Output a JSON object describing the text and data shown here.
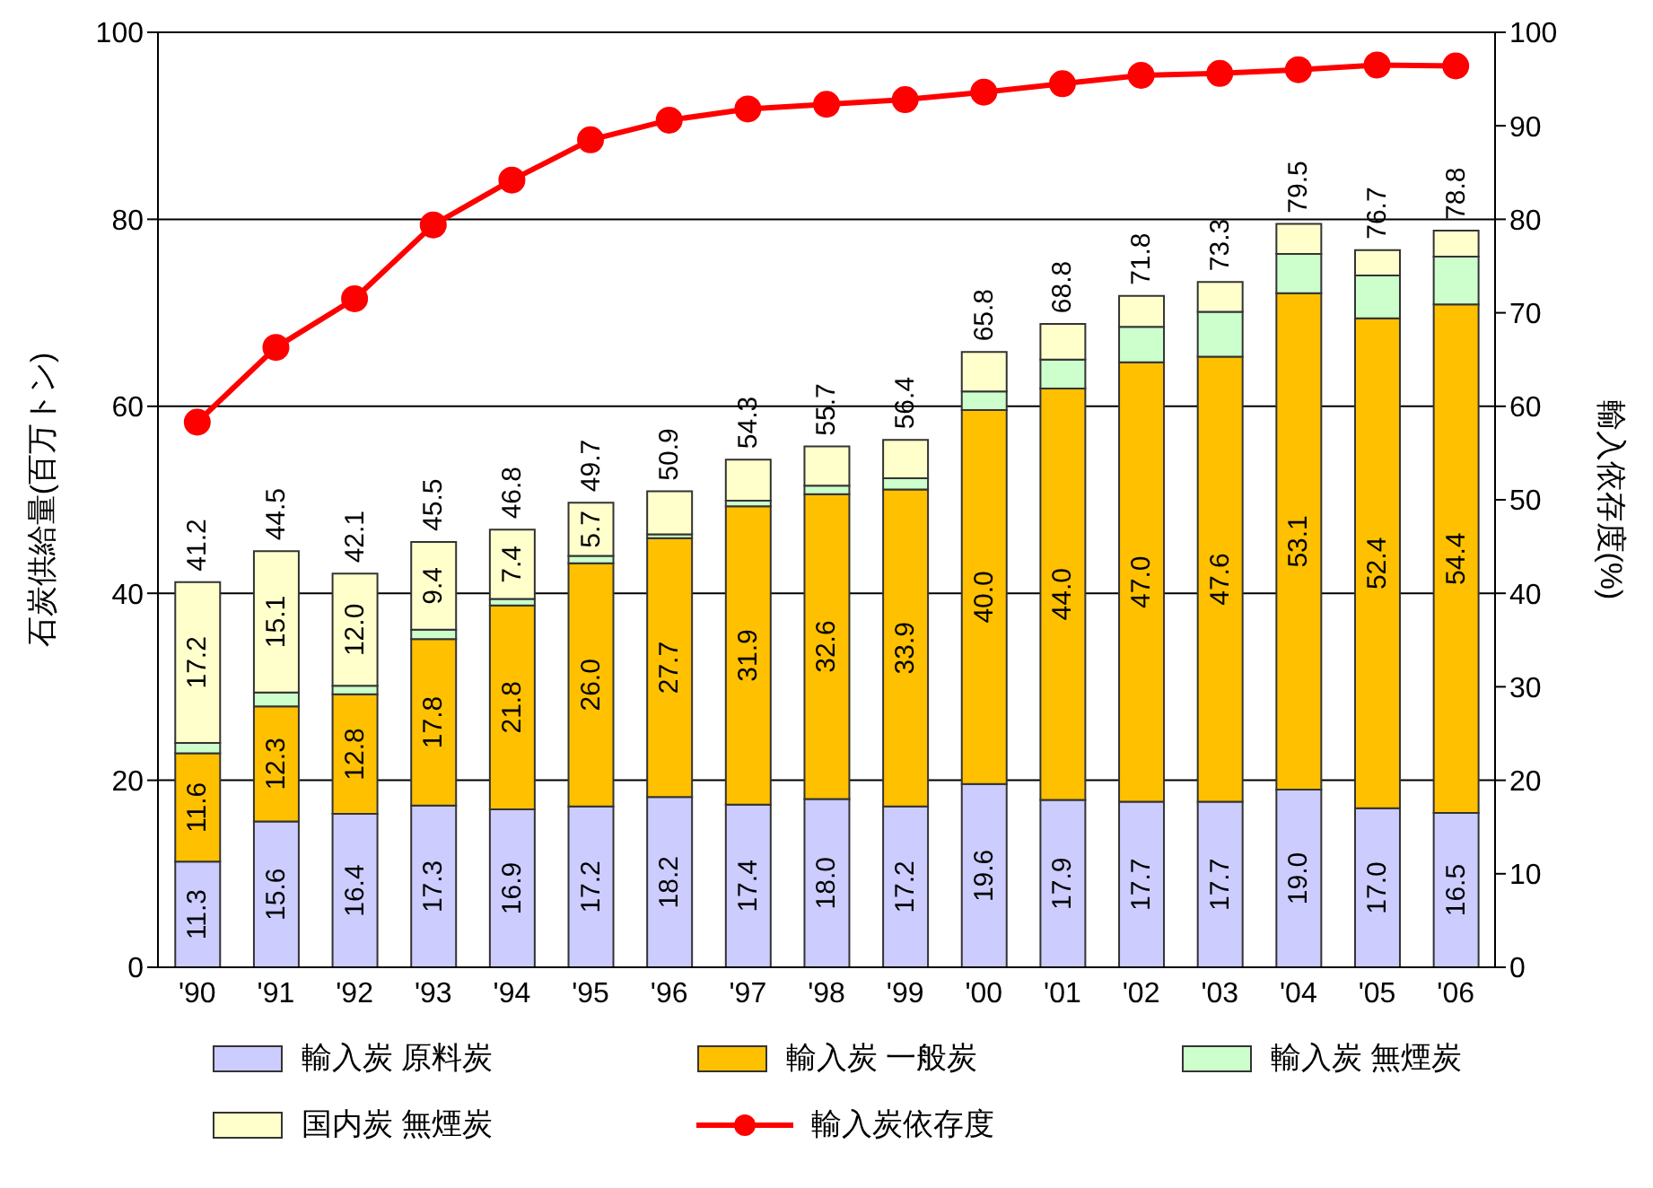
{
  "chart_data": {
    "type": "bar",
    "stacked": true,
    "categories": [
      "'90",
      "'91",
      "'92",
      "'93",
      "'94",
      "'95",
      "'96",
      "'97",
      "'98",
      "'99",
      "'00",
      "'01",
      "'02",
      "'03",
      "'04",
      "'05",
      "'06"
    ],
    "ylabel": "石炭供給量(百万トン)",
    "y2label": "輸入依存度(%)",
    "ylim": [
      0,
      100
    ],
    "yticks": [
      0,
      20,
      40,
      60,
      80,
      100
    ],
    "y2lim": [
      0,
      100
    ],
    "y2ticks": [
      0,
      10,
      20,
      30,
      40,
      50,
      60,
      70,
      80,
      90,
      100
    ],
    "grid": "y",
    "legend": "bottom",
    "marker": "circle",
    "series": [
      {
        "name": "輸入炭 原料炭",
        "color": "#ccccff",
        "values": [
          11.3,
          15.6,
          16.4,
          17.3,
          16.9,
          17.2,
          18.2,
          17.4,
          18.0,
          17.2,
          19.6,
          17.9,
          17.7,
          17.7,
          19.0,
          17.0,
          16.5
        ],
        "value_labels": [
          "11.3",
          "15.6",
          "16.4",
          "17.3",
          "16.9",
          "17.2",
          "18.2",
          "17.4",
          "18.0",
          "17.2",
          "19.6",
          "17.9",
          "17.7",
          "17.7",
          "19.0",
          "17.0",
          "16.5"
        ]
      },
      {
        "name": "輸入炭 一般炭",
        "color": "#ffc000",
        "values": [
          11.6,
          12.3,
          12.8,
          17.8,
          21.8,
          26.0,
          27.7,
          31.9,
          32.6,
          33.9,
          40.0,
          44.0,
          47.0,
          47.6,
          53.1,
          52.4,
          54.4
        ],
        "value_labels": [
          "11.6",
          "12.3",
          "12.8",
          "17.8",
          "21.8",
          "26.0",
          "27.7",
          "31.9",
          "32.6",
          "33.9",
          "40.0",
          "44.0",
          "47.0",
          "47.6",
          "53.1",
          "52.4",
          "54.4"
        ]
      },
      {
        "name": "輸入炭 無煙炭",
        "color": "#ccffcc",
        "values": [
          1.1,
          1.5,
          0.9,
          1.0,
          0.7,
          0.8,
          0.4,
          0.6,
          0.9,
          1.2,
          2.0,
          3.1,
          3.8,
          4.8,
          4.2,
          4.6,
          5.1
        ]
      },
      {
        "name": "国内炭 無煙炭",
        "color": "#ffffcc",
        "values": [
          17.2,
          15.1,
          12.0,
          9.4,
          7.4,
          5.7,
          4.6,
          4.4,
          4.2,
          4.1,
          4.2,
          3.8,
          3.3,
          3.2,
          3.2,
          2.7,
          2.8
        ],
        "value_labels": [
          "17.2",
          "15.1",
          "12.0",
          "9.4",
          "7.4",
          "5.7",
          null,
          null,
          null,
          null,
          null,
          null,
          null,
          null,
          null,
          null,
          null
        ]
      },
      {
        "name": "輸入炭依存度",
        "type": "line",
        "axis": "y2",
        "color": "#ff0000",
        "values": [
          58.3,
          66.3,
          71.5,
          79.4,
          84.2,
          88.5,
          90.6,
          91.8,
          92.3,
          92.8,
          93.6,
          94.5,
          95.4,
          95.6,
          96.0,
          96.5,
          96.4
        ]
      }
    ],
    "totals": [
      "41.2",
      "44.5",
      "42.1",
      "45.5",
      "46.8",
      "49.7",
      "50.9",
      "54.3",
      "55.7",
      "56.4",
      "65.8",
      "68.8",
      "71.8",
      "73.3",
      "79.5",
      "76.7",
      "78.8"
    ]
  }
}
